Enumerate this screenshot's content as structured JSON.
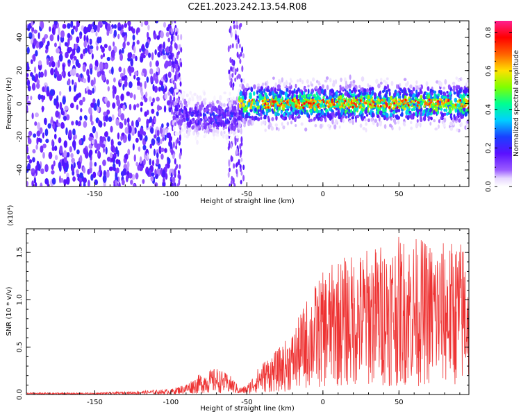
{
  "title": "C2E1.2023.242.13.54.R08",
  "chart_data": [
    {
      "type": "heatmap",
      "xlabel": "Height of straight line (km)",
      "ylabel": "Frequency (Hz)",
      "xlim": [
        -195,
        96
      ],
      "ylim": [
        -50,
        50
      ],
      "xticks": [
        -150,
        -100,
        -50,
        0,
        50
      ],
      "yticks": [
        -40,
        -20,
        0,
        20,
        40
      ],
      "colorbar": {
        "label": "Normalized spectral amplitude",
        "range": [
          0.0,
          0.86
        ],
        "ticks": [
          "0.0",
          "0.2",
          "0.4",
          "0.6",
          "0.8"
        ],
        "colormap": "rainbow (white-violet-blue-cyan-green-yellow-red-magenta)"
      },
      "regions": [
        {
          "x_range": [
            -195,
            -98
          ],
          "description": "broadband violet noise across all frequencies"
        },
        {
          "x_range": [
            -98,
            -90
          ],
          "ridge_freq": -5,
          "peak_amp": 0.25
        },
        {
          "x_range": [
            -90,
            -55
          ],
          "ridge_freq": -8,
          "peak_amp": 0.3
        },
        {
          "x_range": [
            -55,
            96
          ],
          "ridge_freq": 0,
          "peak_amp": 0.8
        }
      ]
    },
    {
      "type": "line",
      "xlabel": "Height of straight line (km)",
      "ylabel": "SNR (10 * v/v)",
      "y_multiplier": "(x10⁴)",
      "xlim": [
        -195,
        96
      ],
      "ylim": [
        0,
        1.75
      ],
      "xticks": [
        -150,
        -100,
        -50,
        0,
        50
      ],
      "yticks": [
        "0.0",
        "0.5",
        "1.0",
        "1.5"
      ],
      "series": [
        {
          "color": "#ee3333",
          "x": [
            -195,
            -150,
            -120,
            -100,
            -90,
            -80,
            -70,
            -60,
            -55,
            -50,
            -45,
            -40,
            -35,
            -30,
            -25,
            -20,
            -15,
            -10,
            -5,
            0,
            5,
            10,
            20,
            30,
            40,
            50,
            60,
            70,
            80,
            90,
            96
          ],
          "y": [
            0.01,
            0.01,
            0.02,
            0.03,
            0.06,
            0.12,
            0.15,
            0.1,
            0.04,
            0.05,
            0.12,
            0.18,
            0.22,
            0.25,
            0.3,
            0.35,
            0.45,
            0.55,
            0.62,
            0.68,
            0.72,
            0.76,
            0.78,
            0.82,
            0.85,
            0.88,
            0.88,
            0.86,
            0.85,
            0.86,
            0.86
          ]
        }
      ]
    }
  ]
}
